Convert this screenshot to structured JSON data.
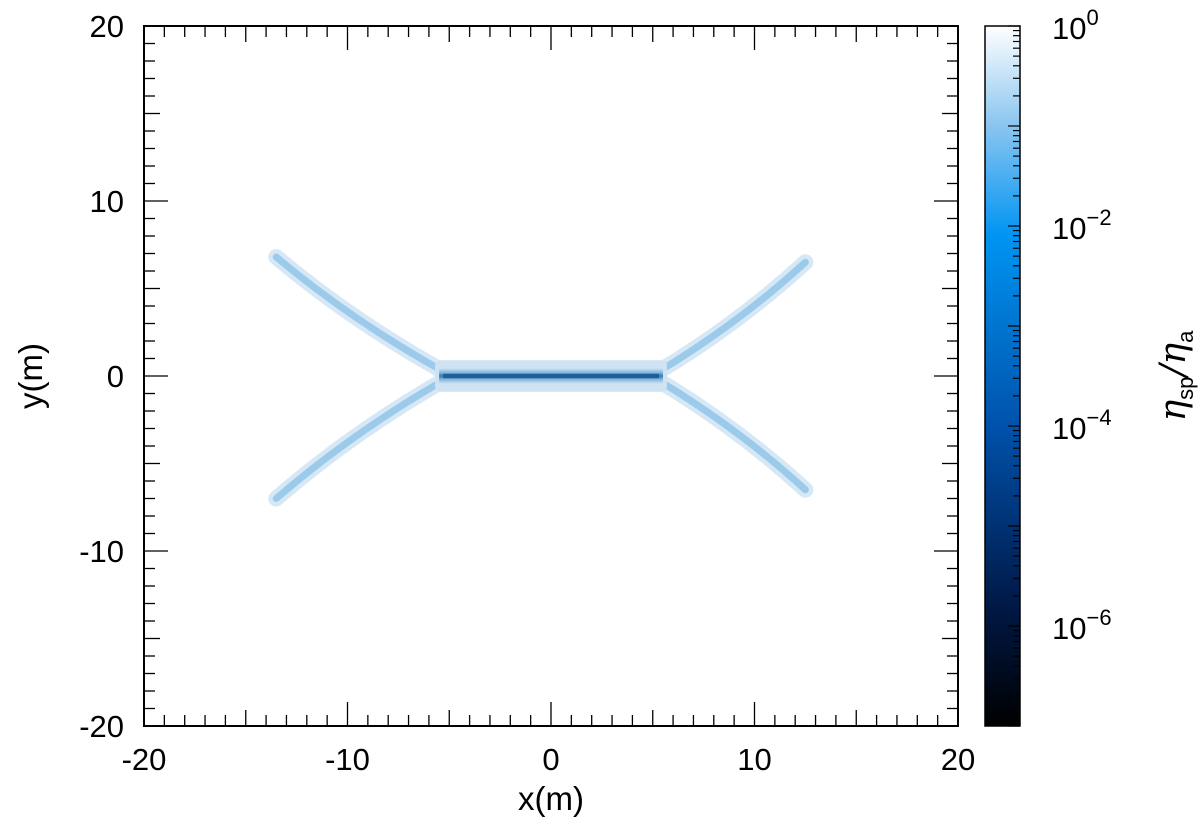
{
  "chart_data": {
    "type": "heatmap",
    "title": "",
    "xlabel": "x(m)",
    "ylabel": "y(m)",
    "xlim": [
      -20,
      20
    ],
    "ylim": [
      -20,
      20
    ],
    "x_tick_labels": [
      "-20",
      "-10",
      "0",
      "10",
      "20"
    ],
    "x_tick_values": [
      -20,
      -10,
      0,
      10,
      20
    ],
    "y_tick_labels": [
      "-20",
      "-10",
      "0",
      "10",
      "20"
    ],
    "y_tick_values": [
      -20,
      -10,
      0,
      10,
      20
    ],
    "colorbar": {
      "label_symbol": "η",
      "label_num_sub": "sp",
      "label_den_sub": "a",
      "scale": "log",
      "range": [
        1e-07,
        1
      ],
      "tick_base": "10",
      "tick_exponents": [
        "0",
        "−2",
        "−4",
        "−6"
      ],
      "tick_values": [
        1,
        0.01,
        0.0001,
        1e-06
      ],
      "colors_low_to_high": [
        "#000000",
        "#00205c",
        "#0060c0",
        "#0090f0",
        "#90c8f0",
        "#ffffff"
      ]
    },
    "regions": {
      "central_sheet": {
        "x_range": [
          -5.5,
          5.5
        ],
        "y_center": 0,
        "half_thickness": 0.25,
        "min_ratio": 0.0005
      },
      "separatrix_arms": [
        {
          "name": "upper-left",
          "from": [
            -5.5,
            0.4
          ],
          "to": [
            -13.5,
            6.8
          ],
          "ratio": 0.1
        },
        {
          "name": "upper-right",
          "from": [
            5.5,
            0.4
          ],
          "to": [
            12.5,
            6.5
          ],
          "ratio": 0.1
        },
        {
          "name": "lower-left",
          "from": [
            -5.5,
            -0.4
          ],
          "to": [
            -13.5,
            -7.0
          ],
          "ratio": 0.1
        },
        {
          "name": "lower-right",
          "from": [
            5.5,
            -0.4
          ],
          "to": [
            12.5,
            -6.5
          ],
          "ratio": 0.1
        }
      ],
      "background_ratio": 1
    }
  }
}
